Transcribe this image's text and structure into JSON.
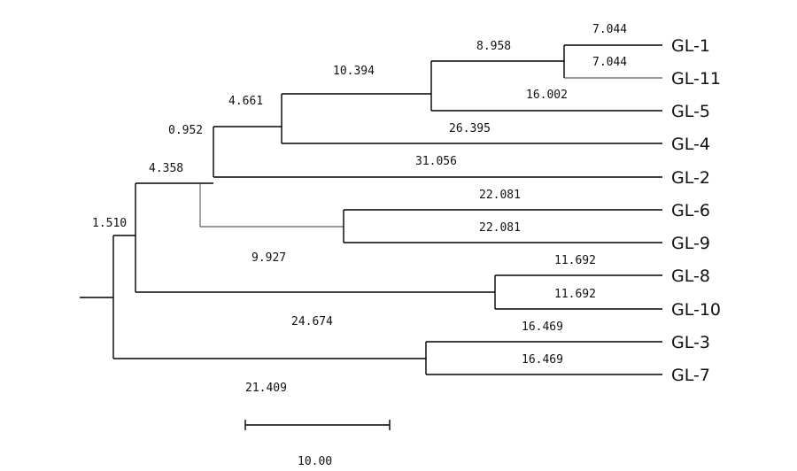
{
  "taxa": [
    "GL-1",
    "GL-11",
    "GL-5",
    "GL-4",
    "GL-2",
    "GL-6",
    "GL-9",
    "GL-8",
    "GL-10",
    "GL-3",
    "GL-7"
  ],
  "branch_lengths": {
    "GL-1": "7.044",
    "GL-11": "7.044",
    "GL-1_GL-11_stem": "8.958",
    "GL-5": "16.002",
    "GL-1_GL-11_GL-5_stem": "10.394",
    "GL-4": "26.395",
    "GL-1_to_GL-4_stem": "4.661",
    "GL-2": "31.056",
    "GL-1_to_GL-2_stem": "0.952",
    "GL-6": "22.081",
    "GL-9": "22.081",
    "GL-6_GL-9_stem": "9.927",
    "GL-1_to_GL-9_stem": "4.358",
    "GL-8": "11.692",
    "GL-10": "11.692",
    "GL-8_GL-10_stem": "24.674",
    "GL-1_to_GL-10_stem": "1.510",
    "GL-3": "16.469",
    "GL-7": "16.469",
    "GL-3_GL-7_stem": "21.409"
  },
  "scale_bar": {
    "label": "10.00",
    "value": 10
  }
}
